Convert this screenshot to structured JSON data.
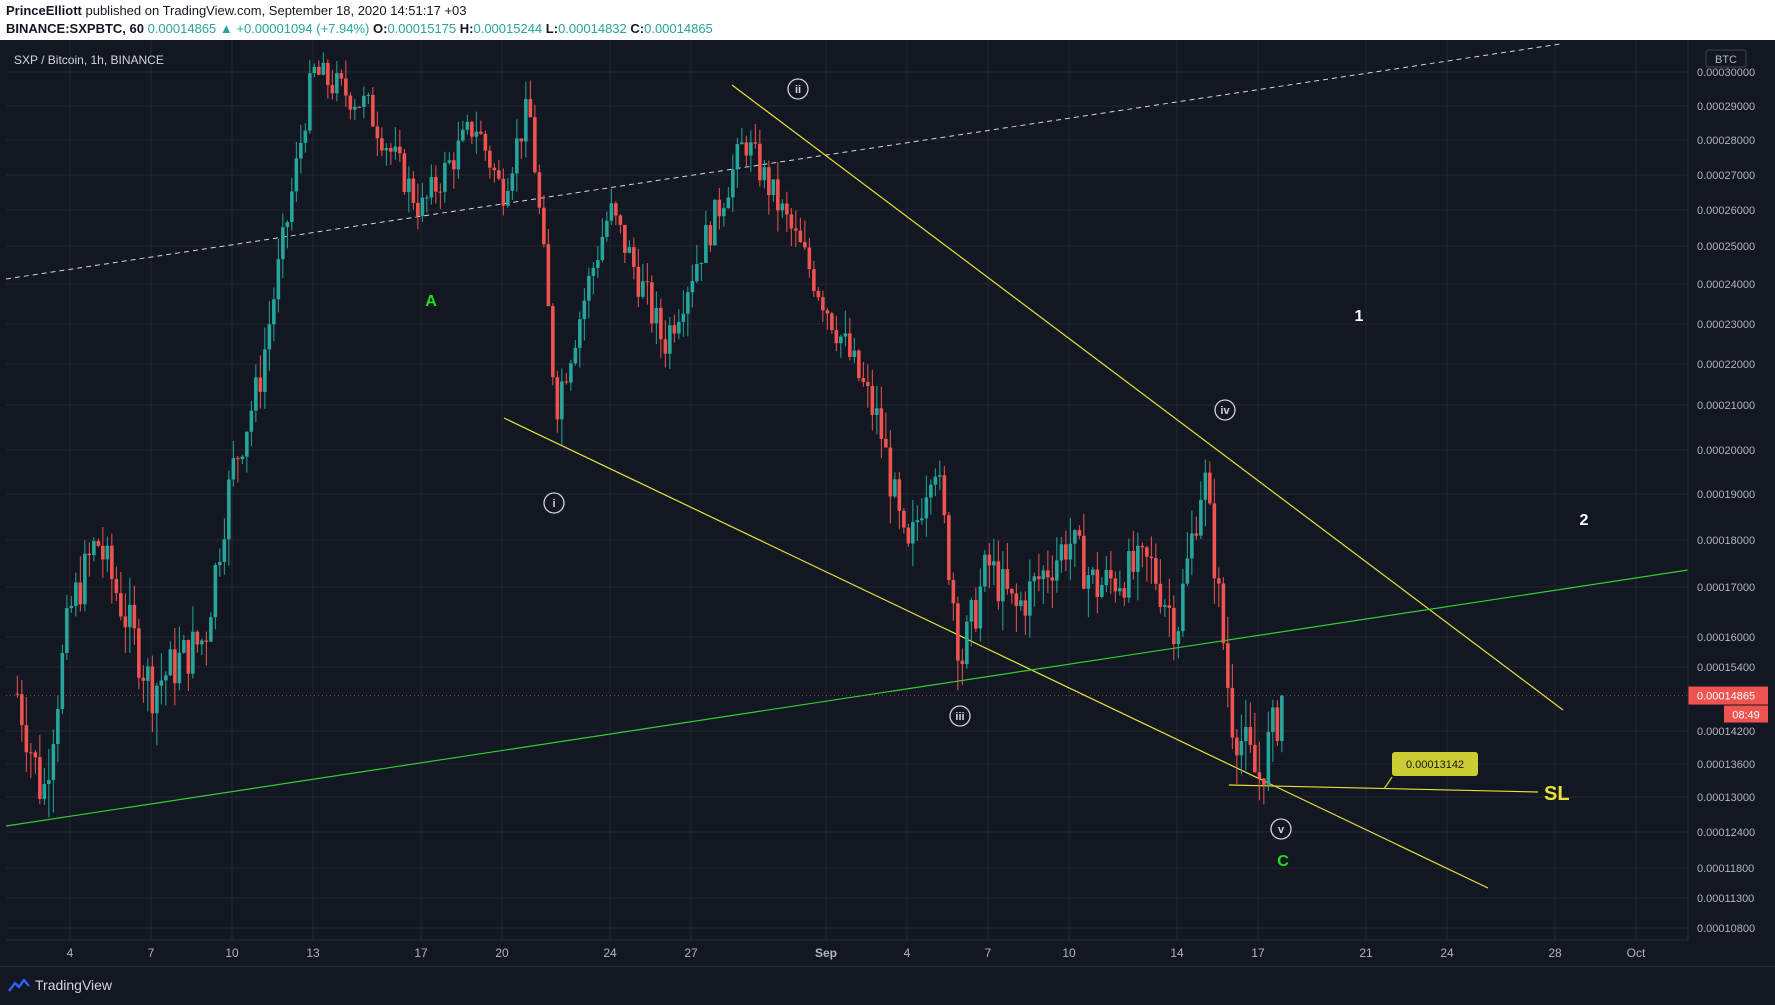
{
  "header": {
    "author": "PrinceElliott",
    "published": "published on TradingView.com, September 18, 2020 14:51:17 +03",
    "symbol": "BINANCE:SXPBTC, 60",
    "change": "0.00014865 ▲ +0.00001094 (+7.94%)",
    "o_label": "O:",
    "o_value": "0.00015175",
    "h_label": "H:",
    "h_value": "0.00015244",
    "l_label": "L:",
    "l_value": "0.00014832",
    "c_label": "C:",
    "c_value": "0.00014865"
  },
  "chart_title": "SXP / Bitcoin, 1h, BINANCE",
  "currency": "BTC",
  "price_axis_labels": [
    "0.00030000",
    "0.00029000",
    "0.00028000",
    "0.00027000",
    "0.00026000",
    "0.00025000",
    "0.00024000",
    "0.00023000",
    "0.00022000",
    "0.00021000",
    "0.00020000",
    "0.00019000",
    "0.00018000",
    "0.00017000",
    "0.00016000",
    "0.00015400",
    "0.00014200",
    "0.00013600",
    "0.00013000",
    "0.00012400",
    "0.00011800",
    "0.00011300",
    "0.00010800"
  ],
  "time_axis_labels": [
    "4",
    "7",
    "10",
    "13",
    "17",
    "20",
    "24",
    "27",
    "Sep",
    "4",
    "7",
    "10",
    "14",
    "17",
    "21",
    "24",
    "28",
    "Oct"
  ],
  "last_price": "0.00014865",
  "countdown": "08:49",
  "sl_price": "0.00013142",
  "sl_text": "SL",
  "wave_labels": {
    "A": "A",
    "C": "C",
    "one": "1",
    "two": "2",
    "i": "i",
    "ii": "ii",
    "iii": "iii",
    "iv": "iv",
    "v": "v"
  },
  "footer": {
    "brand": "TradingView"
  },
  "colors": {
    "background": "#131722",
    "up": "#26a69a",
    "down": "#ef5350",
    "yellow_line": "#e8e03a",
    "green_line": "#33cc33",
    "wave_green": "#22dd22"
  },
  "chart_data": {
    "type": "candlestick",
    "title": "SXP / Bitcoin, 1h, BINANCE",
    "ylabel": "BTC",
    "approx_close_path": [
      {
        "x": "Aug 2",
        "y": 0.00015
      },
      {
        "x": "Aug 3",
        "y": 0.00013
      },
      {
        "x": "Aug 4",
        "y": 0.000165
      },
      {
        "x": "Aug 5",
        "y": 0.00018
      },
      {
        "x": "Aug 7",
        "y": 0.00015
      },
      {
        "x": "Aug 9",
        "y": 0.00016
      },
      {
        "x": "Aug 10",
        "y": 0.000195
      },
      {
        "x": "Aug 11",
        "y": 0.000215
      },
      {
        "x": "Aug 12",
        "y": 0.000255
      },
      {
        "x": "Aug 13",
        "y": 0.0003
      },
      {
        "x": "Aug 15",
        "y": 0.00029
      },
      {
        "x": "Aug 17",
        "y": 0.00026
      },
      {
        "x": "Aug 19",
        "y": 0.000285
      },
      {
        "x": "Aug 20",
        "y": 0.000265
      },
      {
        "x": "Aug 21",
        "y": 0.00029
      },
      {
        "x": "Aug 22",
        "y": 0.00021
      },
      {
        "x": "Aug 24",
        "y": 0.00026
      },
      {
        "x": "Aug 26",
        "y": 0.000225
      },
      {
        "x": "Aug 28",
        "y": 0.00026
      },
      {
        "x": "Aug 29",
        "y": 0.00028
      },
      {
        "x": "Aug 31",
        "y": 0.00025
      },
      {
        "x": "Sep 2",
        "y": 0.00022
      },
      {
        "x": "Sep 3",
        "y": 0.000205
      },
      {
        "x": "Sep 4",
        "y": 0.000175
      },
      {
        "x": "Sep 5",
        "y": 0.0002
      },
      {
        "x": "Sep 6",
        "y": 0.000155
      },
      {
        "x": "Sep 7",
        "y": 0.000175
      },
      {
        "x": "Sep 8",
        "y": 0.000165
      },
      {
        "x": "Sep 10",
        "y": 0.00018
      },
      {
        "x": "Sep 11",
        "y": 0.00017
      },
      {
        "x": "Sep 13",
        "y": 0.000175
      },
      {
        "x": "Sep 14",
        "y": 0.000162
      },
      {
        "x": "Sep 15",
        "y": 0.000195
      },
      {
        "x": "Sep 16",
        "y": 0.000145
      },
      {
        "x": "Sep 17",
        "y": 0.000133
      },
      {
        "x": "Sep 18",
        "y": 0.000149
      }
    ],
    "last": 0.00014865,
    "ylim": [
      0.0001065,
      0.000305
    ],
    "annotations": [
      {
        "label": "A",
        "color": "green",
        "x": "Aug 17",
        "y": 0.00024
      },
      {
        "label": "i",
        "circled": true,
        "x": "Aug 22",
        "y": 0.00019
      },
      {
        "label": "ii",
        "circled": true,
        "x": "Aug 30",
        "y": 0.000297
      },
      {
        "label": "iii",
        "circled": true,
        "x": "Sep 6",
        "y": 0.000143
      },
      {
        "label": "iv",
        "circled": true,
        "x": "Sep 15",
        "y": 0.00021
      },
      {
        "label": "v",
        "circled": true,
        "x": "Sep 17",
        "y": 0.000125
      },
      {
        "label": "C",
        "color": "green",
        "x": "Sep 17",
        "y": 0.00012
      },
      {
        "label": "1",
        "x": "Sep 19",
        "y": 0.000232
      },
      {
        "label": "2",
        "x": "Sep 27",
        "y": 0.000184
      },
      {
        "label": "SL",
        "x": "Sep 27",
        "y": 0.000131
      }
    ]
  }
}
